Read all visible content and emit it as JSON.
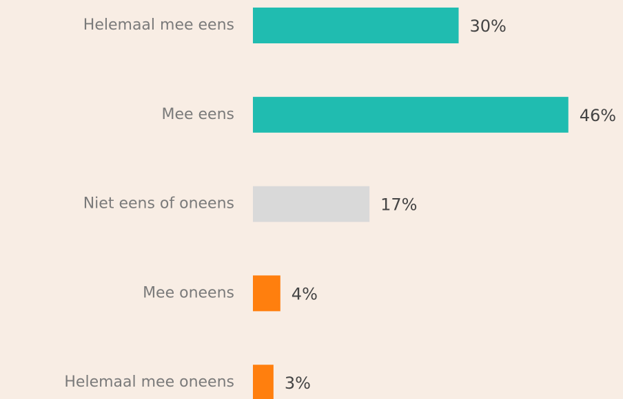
{
  "chart_data": {
    "type": "bar",
    "orientation": "horizontal",
    "categories": [
      "Helemaal mee eens",
      "Mee eens",
      "Niet eens of oneens",
      "Mee oneens",
      "Helemaal mee oneens"
    ],
    "values": [
      30,
      46,
      17,
      4,
      3
    ],
    "value_labels": [
      "30%",
      "46%",
      "17%",
      "4%",
      "3%"
    ],
    "colors": [
      "#20bcb0",
      "#20bcb0",
      "#d9d9d9",
      "#ff7f0e",
      "#ff7f0e"
    ]
  }
}
